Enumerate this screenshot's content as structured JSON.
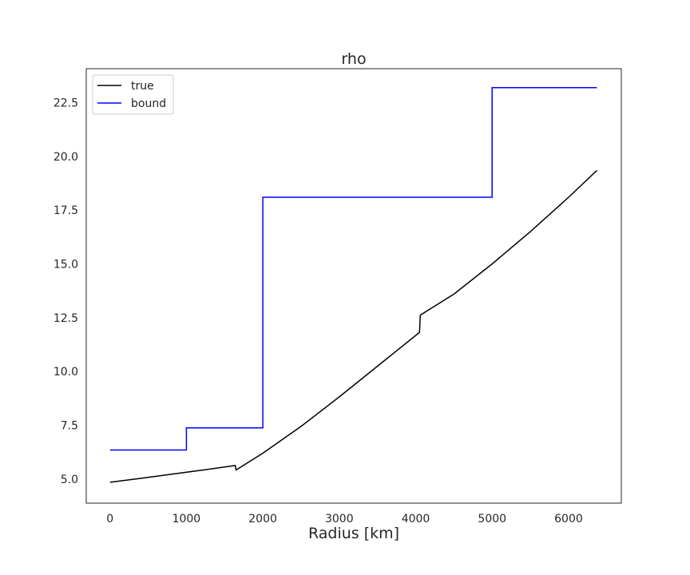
{
  "chart_data": {
    "type": "line",
    "title": "rho",
    "xlabel": "Radius [km]",
    "ylabel": "",
    "xlim": [
      -310,
      6690
    ],
    "ylim": [
      3.88,
      24.08
    ],
    "xticks": [
      0,
      1000,
      2000,
      3000,
      4000,
      5000,
      6000
    ],
    "xtick_labels": [
      "0",
      "1000",
      "2000",
      "3000",
      "4000",
      "5000",
      "6000"
    ],
    "yticks": [
      5.0,
      7.5,
      10.0,
      12.5,
      15.0,
      17.5,
      20.0,
      22.5
    ],
    "ytick_labels": [
      "5.0",
      "7.5",
      "10.0",
      "12.5",
      "15.0",
      "17.5",
      "20.0",
      "22.5"
    ],
    "grid": false,
    "legend_position": "top-left",
    "series": [
      {
        "name": "true",
        "color": "#000000",
        "x": [
          0,
          400,
          800,
          1200,
          1640,
          1650,
          2000,
          2500,
          3000,
          3500,
          4050,
          4060,
          4500,
          5000,
          5500,
          6000,
          6370
        ],
        "y": [
          4.85,
          5.03,
          5.22,
          5.41,
          5.63,
          5.42,
          6.2,
          7.45,
          8.82,
          10.25,
          11.82,
          12.62,
          13.6,
          15.0,
          16.5,
          18.1,
          19.35
        ]
      },
      {
        "name": "bound",
        "color": "#0000ff",
        "x": [
          0,
          1000,
          1000,
          2000,
          2000,
          5000,
          5000,
          6370
        ],
        "y": [
          6.35,
          6.35,
          7.38,
          7.38,
          18.1,
          18.1,
          23.2,
          23.2
        ]
      }
    ]
  }
}
